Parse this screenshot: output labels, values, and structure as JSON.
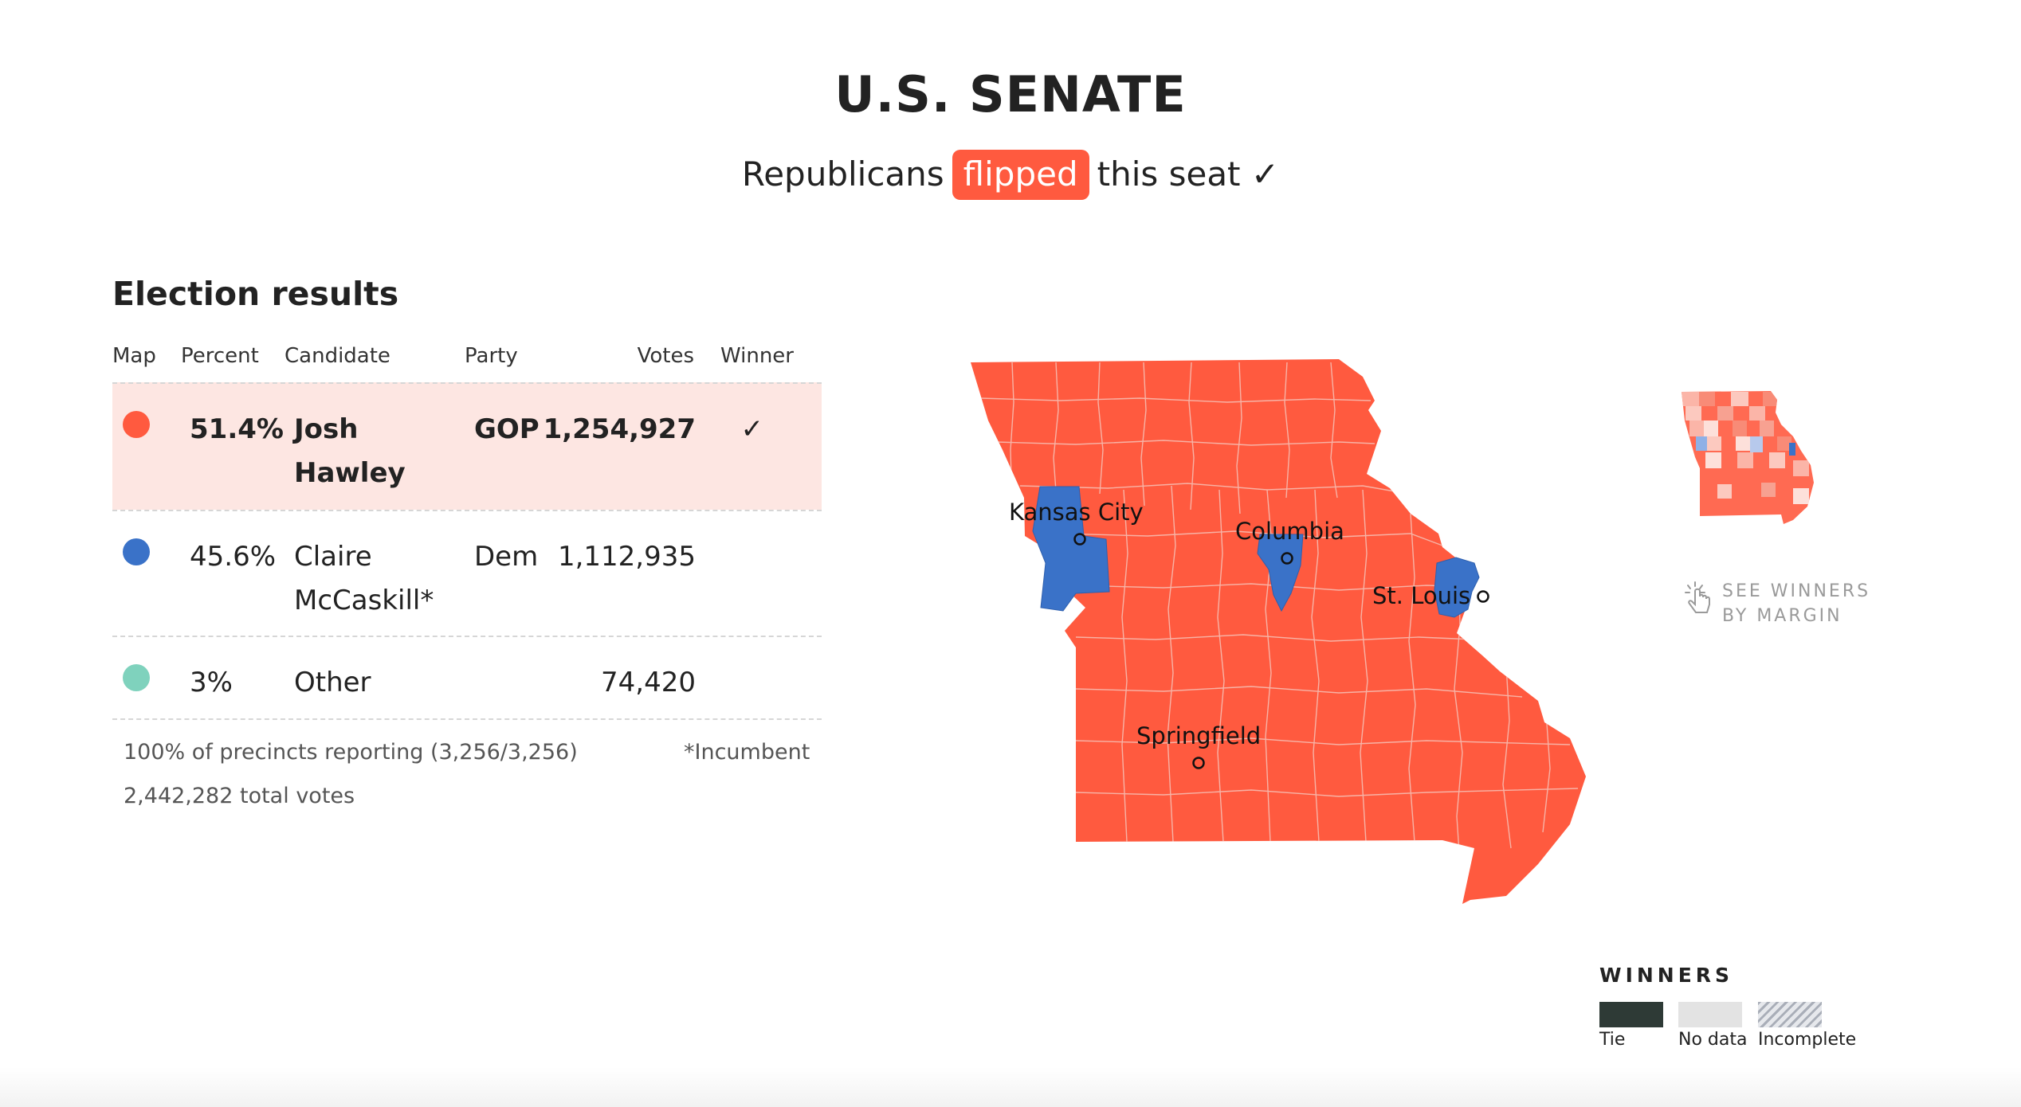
{
  "header": {
    "title": "U.S. SENATE",
    "subtitle_before": "Republicans",
    "subtitle_badge": "flipped",
    "subtitle_after": "this seat ✓"
  },
  "results": {
    "title": "Election results",
    "columns": [
      "Map",
      "Percent",
      "Candidate",
      "Party",
      "Votes",
      "Winner"
    ],
    "rows": [
      {
        "color": "#ff5a3f",
        "percent": "51.4%",
        "candidate_line1": "Josh",
        "candidate_line2": "Hawley",
        "party": "GOP",
        "votes": "1,254,927",
        "winner": "✓"
      },
      {
        "color": "#3a72c8",
        "percent": "45.6%",
        "candidate_line1": "Claire",
        "candidate_line2": "McCaskill*",
        "party": "Dem",
        "votes": "1,112,935",
        "winner": ""
      },
      {
        "color": "#7fd2bd",
        "percent": "3%",
        "candidate_line1": "Other",
        "candidate_line2": "",
        "party": "",
        "votes": "74,420",
        "winner": ""
      }
    ],
    "reporting": "100% of precincts reporting (3,256/3,256)",
    "total_votes": "2,442,282 total votes",
    "incumbent_note": "*Incumbent"
  },
  "map": {
    "republican_color": "#ff5a3f",
    "democrat_color": "#3a72c8",
    "cities": [
      "Kansas City",
      "Columbia",
      "St. Louis",
      "Springfield"
    ]
  },
  "toggle": {
    "line1": "SEE WINNERS",
    "line2": "BY MARGIN",
    "icon": "pointer-hand-icon"
  },
  "legend": {
    "title": "WINNERS",
    "items": [
      {
        "label": "Tie",
        "color": "#2e3a36"
      },
      {
        "label": "No data",
        "color": "#e3e3e3"
      },
      {
        "label": "Incomplete",
        "color": "hatched"
      }
    ]
  }
}
